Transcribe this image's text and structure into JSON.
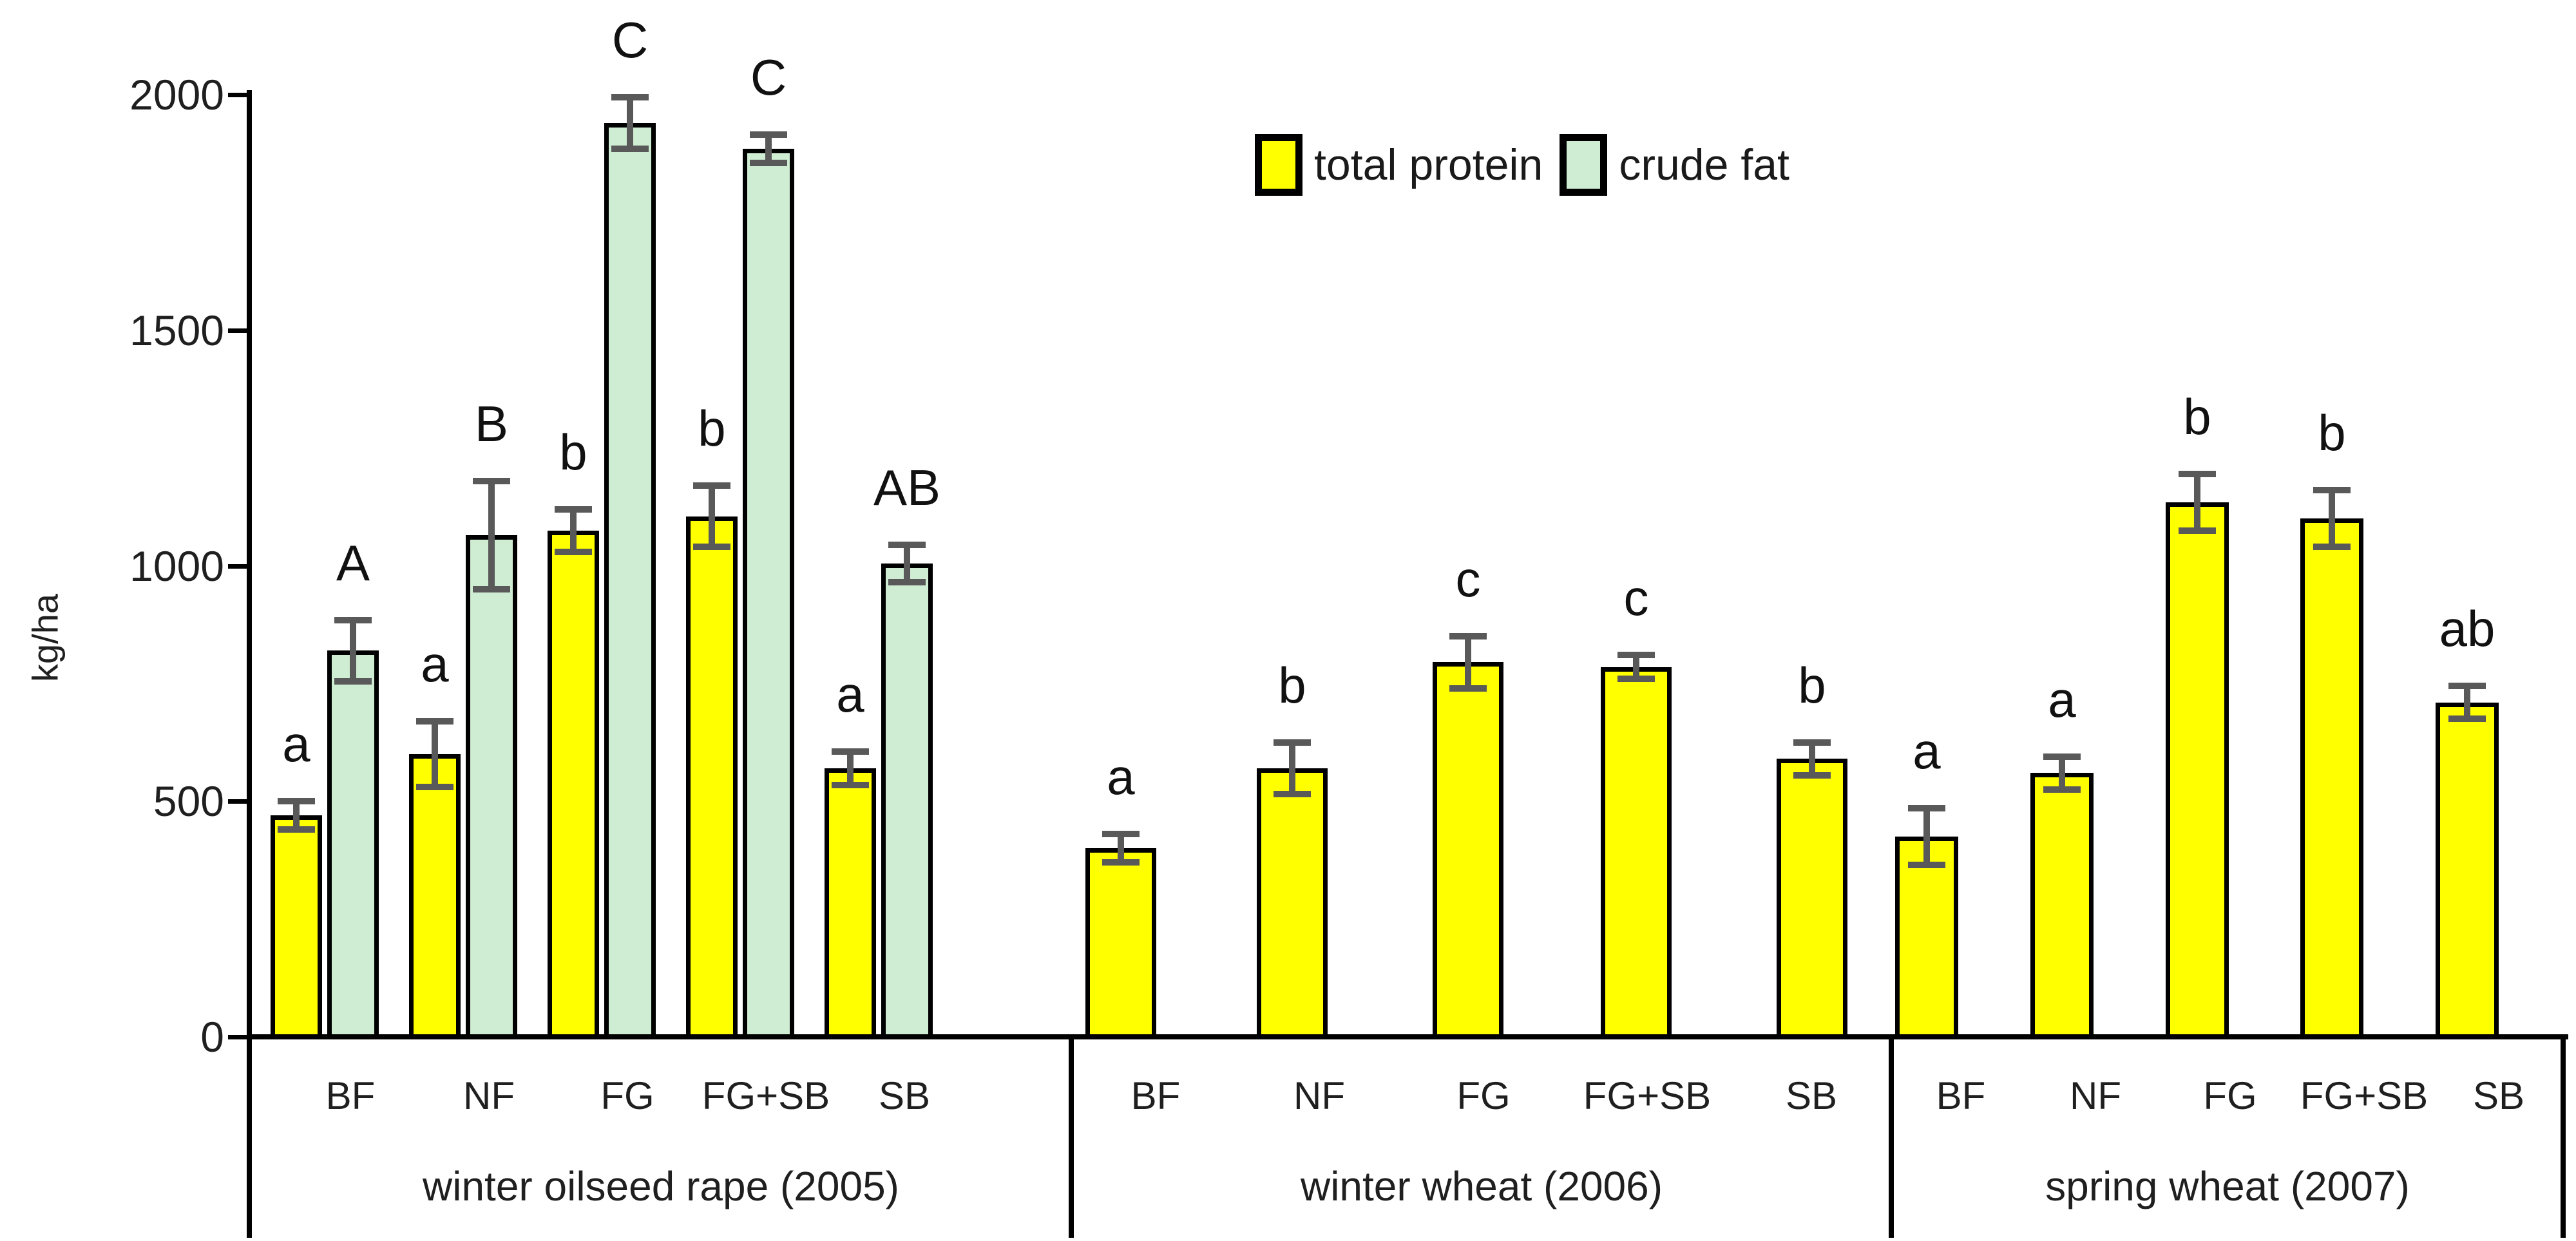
{
  "chart_data": {
    "type": "bar",
    "title": "",
    "xlabel": "",
    "ylabel": "kg/ha",
    "ylim": [
      0,
      2000
    ],
    "yticks": [
      0,
      500,
      1000,
      1500,
      2000
    ],
    "grid": false,
    "legend_position": "top-center",
    "legend": [
      {
        "label": "total protein",
        "color": "#FFFF00"
      },
      {
        "label": "crude fat",
        "color": "#CFEDD2"
      }
    ],
    "error_bar_color": "#595959",
    "bar_border_color": "#000000",
    "groups": [
      {
        "label": "winter oilseed rape (2005)",
        "categories": [
          "BF",
          "NF",
          "FG",
          "FG+SB",
          "SB"
        ],
        "series": [
          {
            "name": "total protein",
            "values": [
              470,
              600,
              1075,
              1105,
              570
            ],
            "errors": [
              30,
              70,
              45,
              65,
              35
            ],
            "letters": [
              "a",
              "a",
              "b",
              "b",
              "a"
            ]
          },
          {
            "name": "crude fat",
            "values": [
              820,
              1065,
              1940,
              1885,
              1005
            ],
            "errors": [
              65,
              115,
              55,
              30,
              40
            ],
            "letters": [
              "A",
              "B",
              "C",
              "C",
              "AB"
            ]
          }
        ]
      },
      {
        "label": "winter wheat (2006)",
        "categories": [
          "BF",
          "NF",
          "FG",
          "FG+SB",
          "SB"
        ],
        "series": [
          {
            "name": "total protein",
            "values": [
              400,
              570,
              795,
              785,
              590
            ],
            "errors": [
              30,
              55,
              55,
              25,
              35
            ],
            "letters": [
              "a",
              "b",
              "c",
              "c",
              "b"
            ]
          }
        ]
      },
      {
        "label": "spring wheat (2007)",
        "categories": [
          "BF",
          "NF",
          "FG",
          "FG+SB",
          "SB"
        ],
        "series": [
          {
            "name": "total protein",
            "values": [
              425,
              560,
              1135,
              1100,
              710
            ],
            "errors": [
              60,
              35,
              60,
              60,
              35
            ],
            "letters": [
              "a",
              "a",
              "b",
              "b",
              "ab"
            ]
          }
        ]
      }
    ]
  }
}
